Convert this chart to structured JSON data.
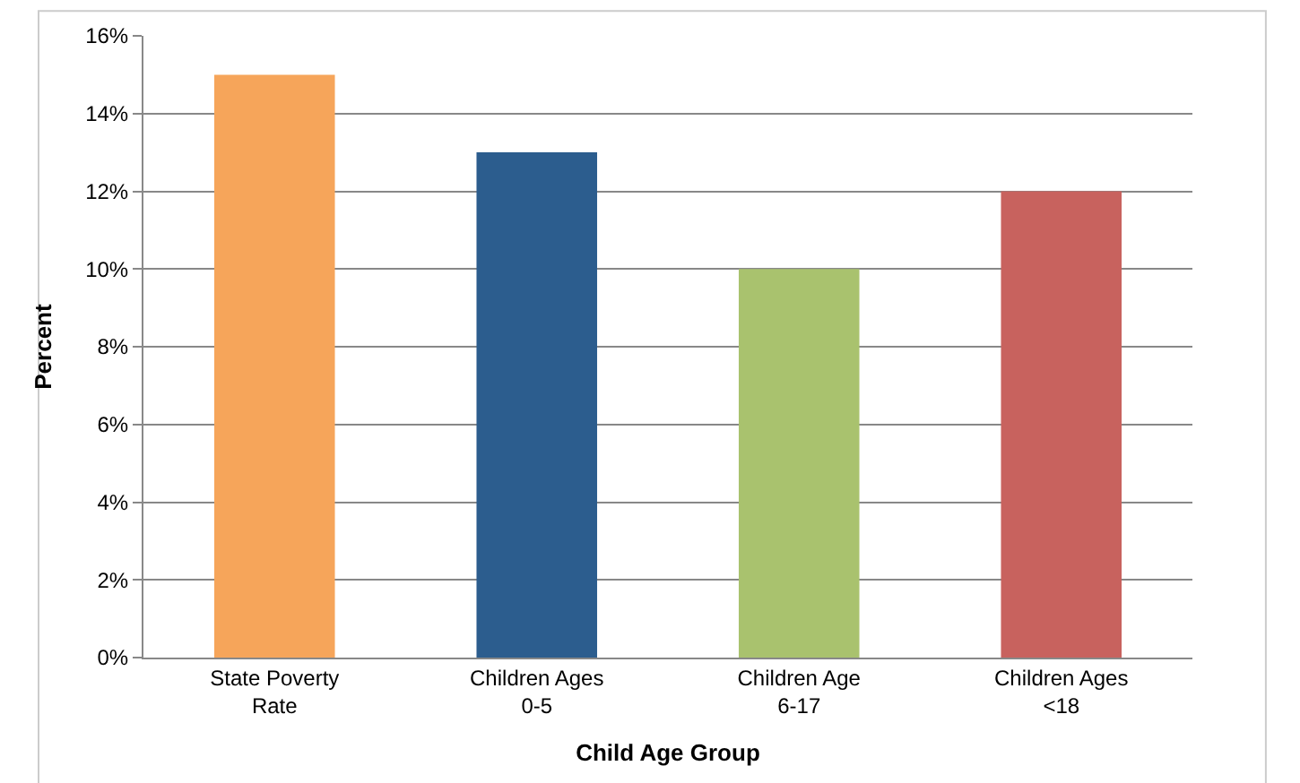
{
  "chart_data": {
    "type": "bar",
    "xlabel": "Child Age Group",
    "ylabel": "Percent",
    "categories": [
      "State Poverty Rate",
      "Children Ages 0-5",
      "Children Age 6-17",
      "Children Ages <18"
    ],
    "values": [
      15,
      13,
      10,
      12
    ],
    "colors": [
      "#f6a55a",
      "#2c5d8e",
      "#a9c26e",
      "#c8625e"
    ],
    "ylim": [
      0,
      16
    ],
    "yticks": [
      {
        "value": 0,
        "label": "0%"
      },
      {
        "value": 2,
        "label": "2%"
      },
      {
        "value": 4,
        "label": "4%"
      },
      {
        "value": 6,
        "label": "6%"
      },
      {
        "value": 8,
        "label": "8%"
      },
      {
        "value": 10,
        "label": "10%"
      },
      {
        "value": 12,
        "label": "12%"
      },
      {
        "value": 14,
        "label": "14%"
      },
      {
        "value": 16,
        "label": "16%"
      }
    ],
    "grid": "y"
  }
}
